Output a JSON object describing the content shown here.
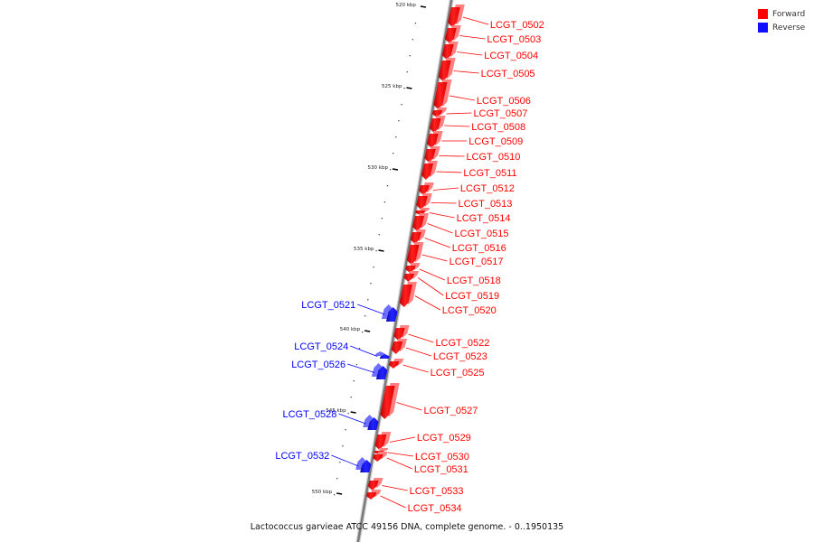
{
  "legend": [
    {
      "label": "Forward",
      "color": "#ff0000"
    },
    {
      "label": "Reverse",
      "color": "#1010ff"
    }
  ],
  "caption": "Lactococcus garvieae ATCC 49156 DNA, complete genome. - 0..1950135",
  "ruler_ticks": [
    "520 kbp",
    "525 kbp",
    "530 kbp",
    "535 kbp",
    "540 kbp",
    "545 kbp",
    "550 kbp"
  ],
  "genes": [
    {
      "id": "LCGT_0502",
      "strand": "forward"
    },
    {
      "id": "LCGT_0503",
      "strand": "forward"
    },
    {
      "id": "LCGT_0504",
      "strand": "forward"
    },
    {
      "id": "LCGT_0505",
      "strand": "forward"
    },
    {
      "id": "LCGT_0506",
      "strand": "forward"
    },
    {
      "id": "LCGT_0507",
      "strand": "forward"
    },
    {
      "id": "LCGT_0508",
      "strand": "forward"
    },
    {
      "id": "LCGT_0509",
      "strand": "forward"
    },
    {
      "id": "LCGT_0510",
      "strand": "forward"
    },
    {
      "id": "LCGT_0511",
      "strand": "forward"
    },
    {
      "id": "LCGT_0512",
      "strand": "forward"
    },
    {
      "id": "LCGT_0513",
      "strand": "forward"
    },
    {
      "id": "LCGT_0514",
      "strand": "forward"
    },
    {
      "id": "LCGT_0515",
      "strand": "forward"
    },
    {
      "id": "LCGT_0516",
      "strand": "forward"
    },
    {
      "id": "LCGT_0517",
      "strand": "forward"
    },
    {
      "id": "LCGT_0518",
      "strand": "forward"
    },
    {
      "id": "LCGT_0519",
      "strand": "forward"
    },
    {
      "id": "LCGT_0520",
      "strand": "forward"
    },
    {
      "id": "LCGT_0521",
      "strand": "reverse"
    },
    {
      "id": "LCGT_0522",
      "strand": "forward"
    },
    {
      "id": "LCGT_0523",
      "strand": "forward"
    },
    {
      "id": "LCGT_0524",
      "strand": "reverse"
    },
    {
      "id": "LCGT_0525",
      "strand": "forward"
    },
    {
      "id": "LCGT_0526",
      "strand": "reverse"
    },
    {
      "id": "LCGT_0527",
      "strand": "forward"
    },
    {
      "id": "LCGT_0528",
      "strand": "reverse"
    },
    {
      "id": "LCGT_0529",
      "strand": "forward"
    },
    {
      "id": "LCGT_0530",
      "strand": "forward"
    },
    {
      "id": "LCGT_0531",
      "strand": "forward"
    },
    {
      "id": "LCGT_0532",
      "strand": "reverse"
    },
    {
      "id": "LCGT_0533",
      "strand": "forward"
    },
    {
      "id": "LCGT_0534",
      "strand": "forward"
    }
  ]
}
